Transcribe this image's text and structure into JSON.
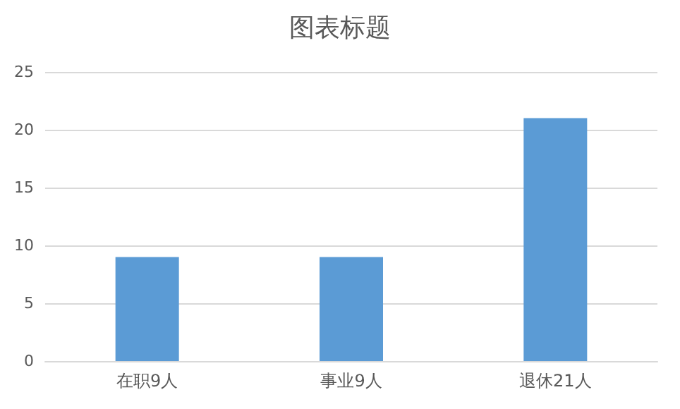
{
  "chart_data": {
    "type": "bar",
    "title": "图表标题",
    "categories": [
      "在职9人",
      "事业9人",
      "退休21人"
    ],
    "values": [
      9,
      9,
      21
    ],
    "color": "#5b9bd5",
    "ylim": [
      0,
      25
    ],
    "yticks": [
      0,
      5,
      10,
      15,
      20,
      25
    ],
    "grid": "y"
  }
}
